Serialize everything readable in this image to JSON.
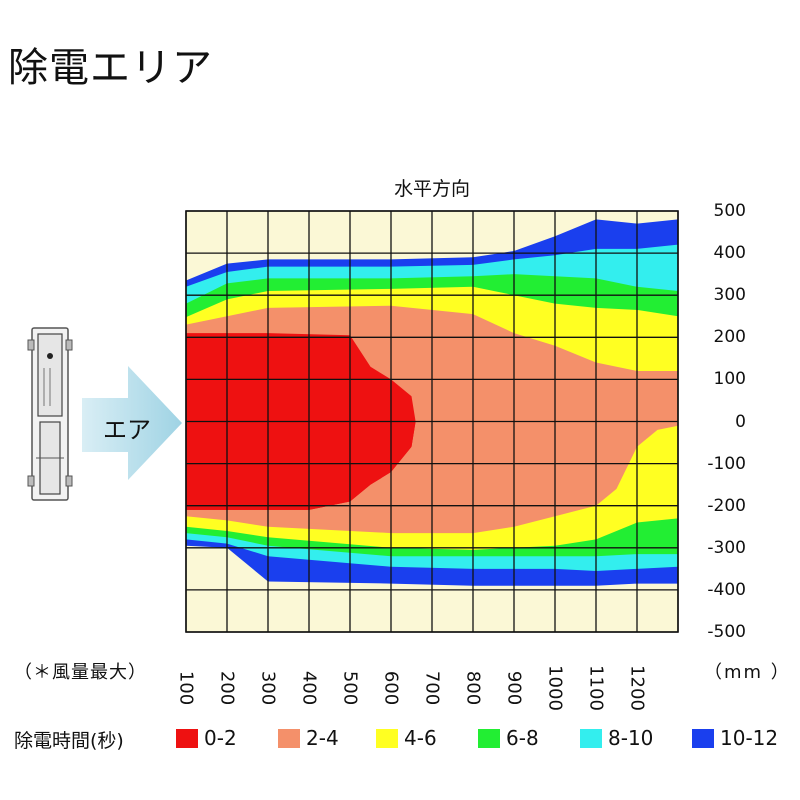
{
  "page": {
    "title": "除電エリア"
  },
  "chart_data": {
    "type": "heatmap",
    "title": "水平方向",
    "x_note": "（＊風量最大）",
    "x_unit": "（mm ）",
    "x_ticks": [
      100,
      200,
      300,
      400,
      500,
      600,
      700,
      800,
      900,
      1000,
      1100,
      1200
    ],
    "y_ticks": [
      500,
      400,
      300,
      200,
      100,
      0,
      -100,
      -200,
      -300,
      -400,
      -500
    ],
    "xlim": [
      0,
      1200
    ],
    "ylim": [
      -500,
      500
    ],
    "airflow_label": "エア",
    "legend_title": "除電時間(秒)",
    "levels": [
      {
        "label": "0-2",
        "color": "#ee1111"
      },
      {
        "label": "2-4",
        "color": "#f4906a"
      },
      {
        "label": "4-6",
        "color": "#ffff22"
      },
      {
        "label": "6-8",
        "color": "#22ee33"
      },
      {
        "label": "8-10",
        "color": "#33eeee"
      },
      {
        "label": "10-12",
        "color": "#1a3fee"
      }
    ],
    "background_color": "#fbf8d6",
    "zones_upper": [
      {
        "level": "10-12",
        "boundary": [
          [
            0,
            335
          ],
          [
            100,
            375
          ],
          [
            200,
            385
          ],
          [
            500,
            385
          ],
          [
            700,
            390
          ],
          [
            800,
            405
          ],
          [
            900,
            440
          ],
          [
            1000,
            480
          ],
          [
            1100,
            470
          ],
          [
            1200,
            480
          ]
        ]
      },
      {
        "level": "8-10",
        "boundary": [
          [
            0,
            320
          ],
          [
            100,
            355
          ],
          [
            200,
            368
          ],
          [
            500,
            368
          ],
          [
            700,
            372
          ],
          [
            800,
            385
          ],
          [
            900,
            395
          ],
          [
            1000,
            410
          ],
          [
            1100,
            410
          ],
          [
            1200,
            420
          ]
        ]
      },
      {
        "level": "6-8",
        "boundary": [
          [
            0,
            280
          ],
          [
            100,
            328
          ],
          [
            200,
            340
          ],
          [
            500,
            340
          ],
          [
            700,
            345
          ],
          [
            800,
            350
          ],
          [
            900,
            345
          ],
          [
            1000,
            340
          ],
          [
            1100,
            320
          ],
          [
            1200,
            310
          ]
        ]
      },
      {
        "level": "4-6",
        "boundary": [
          [
            0,
            248
          ],
          [
            100,
            290
          ],
          [
            200,
            310
          ],
          [
            500,
            315
          ],
          [
            700,
            320
          ],
          [
            800,
            300
          ],
          [
            900,
            280
          ],
          [
            1000,
            270
          ],
          [
            1100,
            265
          ],
          [
            1200,
            250
          ]
        ]
      },
      {
        "level": "2-4",
        "boundary": [
          [
            0,
            230
          ],
          [
            100,
            250
          ],
          [
            200,
            270
          ],
          [
            500,
            275
          ],
          [
            700,
            255
          ],
          [
            800,
            210
          ],
          [
            900,
            180
          ],
          [
            1000,
            140
          ],
          [
            1100,
            120
          ],
          [
            1200,
            120
          ]
        ]
      },
      {
        "level": "0-2",
        "boundary": [
          [
            0,
            210
          ],
          [
            100,
            210
          ],
          [
            200,
            210
          ],
          [
            400,
            205
          ],
          [
            450,
            130
          ],
          [
            500,
            100
          ],
          [
            550,
            60
          ],
          [
            560,
            0
          ]
        ]
      }
    ],
    "zones_lower": [
      {
        "level": "0-2",
        "boundary": [
          [
            560,
            0
          ],
          [
            550,
            -60
          ],
          [
            500,
            -120
          ],
          [
            450,
            -150
          ],
          [
            400,
            -190
          ],
          [
            300,
            -210
          ],
          [
            200,
            -210
          ],
          [
            100,
            -210
          ],
          [
            0,
            -210
          ]
        ]
      },
      {
        "level": "2-4",
        "boundary": [
          [
            0,
            -225
          ],
          [
            100,
            -235
          ],
          [
            200,
            -250
          ],
          [
            500,
            -265
          ],
          [
            700,
            -265
          ],
          [
            800,
            -250
          ],
          [
            900,
            -225
          ],
          [
            1000,
            -200
          ],
          [
            1050,
            -160
          ],
          [
            1100,
            -60
          ],
          [
            1150,
            -20
          ],
          [
            1200,
            -10
          ]
        ]
      },
      {
        "level": "4-6",
        "boundary": [
          [
            0,
            -250
          ],
          [
            100,
            -260
          ],
          [
            200,
            -275
          ],
          [
            500,
            -300
          ],
          [
            700,
            -305
          ],
          [
            800,
            -300
          ],
          [
            900,
            -295
          ],
          [
            1000,
            -280
          ],
          [
            1100,
            -240
          ],
          [
            1200,
            -230
          ]
        ]
      },
      {
        "level": "6-8",
        "boundary": [
          [
            0,
            -265
          ],
          [
            100,
            -275
          ],
          [
            200,
            -295
          ],
          [
            500,
            -320
          ],
          [
            700,
            -320
          ],
          [
            800,
            -320
          ],
          [
            900,
            -320
          ],
          [
            1000,
            -320
          ],
          [
            1100,
            -315
          ],
          [
            1200,
            -315
          ]
        ]
      },
      {
        "level": "8-10",
        "boundary": [
          [
            0,
            -280
          ],
          [
            100,
            -290
          ],
          [
            200,
            -320
          ],
          [
            500,
            -345
          ],
          [
            700,
            -350
          ],
          [
            800,
            -350
          ],
          [
            900,
            -350
          ],
          [
            1000,
            -355
          ],
          [
            1100,
            -350
          ],
          [
            1200,
            -345
          ]
        ]
      },
      {
        "level": "10-12",
        "boundary": [
          [
            0,
            -295
          ],
          [
            100,
            -300
          ],
          [
            200,
            -380
          ],
          [
            500,
            -385
          ],
          [
            700,
            -390
          ],
          [
            800,
            -390
          ],
          [
            900,
            -390
          ],
          [
            1000,
            -390
          ],
          [
            1100,
            -385
          ],
          [
            1200,
            -385
          ]
        ]
      }
    ],
    "grid": true
  }
}
